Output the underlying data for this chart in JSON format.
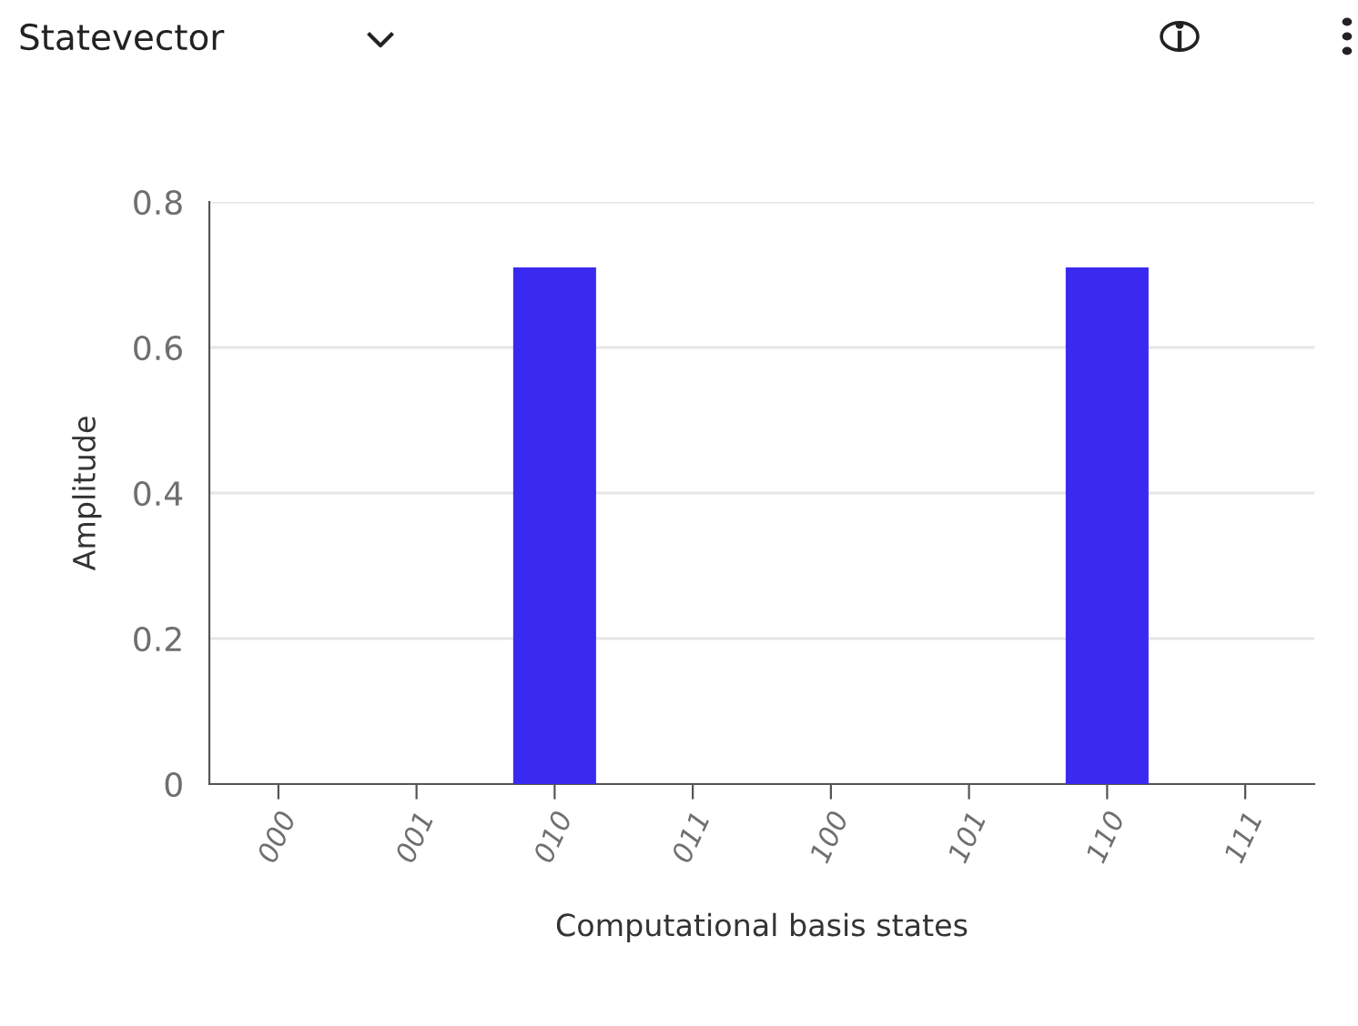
{
  "chart_data": {
    "type": "bar",
    "title": "Statevector",
    "categories": [
      "000",
      "001",
      "010",
      "011",
      "100",
      "101",
      "110",
      "111"
    ],
    "values": [
      0,
      0,
      0.71,
      0,
      0,
      0,
      0.71,
      0
    ],
    "color": "#3a2af0",
    "xlabel": "Computational basis states",
    "ylabel": "Amplitude",
    "ylim": [
      0,
      0.8
    ],
    "yticks": [
      0,
      0.2,
      0.4,
      0.6,
      0.8
    ],
    "grid": "y"
  }
}
